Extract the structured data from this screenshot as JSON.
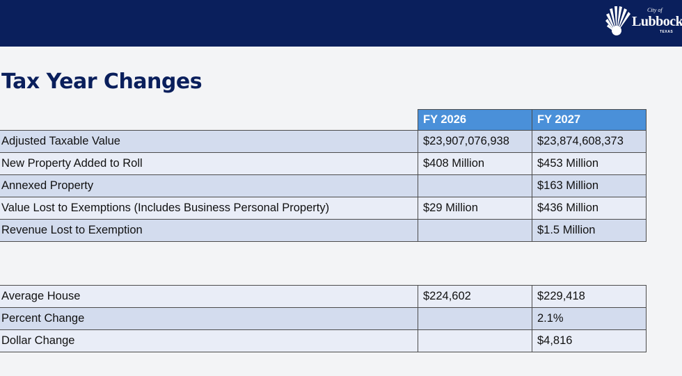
{
  "header": {
    "logo": {
      "city_of": "City of",
      "name": "Lubbock",
      "state": "TEXAS"
    }
  },
  "title": "Tax Year Changes",
  "table1": {
    "columns": [
      "FY 2026",
      "FY 2027"
    ],
    "rows": [
      {
        "label": "Adjusted Taxable Value",
        "fy2026": "$23,907,076,938",
        "fy2027": "$23,874,608,373"
      },
      {
        "label": "New Property Added to Roll",
        "fy2026": "$408 Million",
        "fy2027": "$453 Million"
      },
      {
        "label": "Annexed Property",
        "fy2026": "",
        "fy2027": "$163 Million"
      },
      {
        "label": "Value Lost to Exemptions (Includes Business Personal Property)",
        "fy2026": "$29 Million",
        "fy2027": "$436 Million"
      },
      {
        "label": "Revenue Lost to Exemption",
        "fy2026": "",
        "fy2027": "$1.5 Million"
      }
    ]
  },
  "table2": {
    "rows": [
      {
        "label": "Average House",
        "fy2026": "$224,602",
        "fy2027": "$229,418"
      },
      {
        "label": "Percent Change",
        "fy2026": "",
        "fy2027": "2.1%"
      },
      {
        "label": "Dollar Change",
        "fy2026": "",
        "fy2027": "$4,816"
      }
    ]
  },
  "colors": {
    "header_bar": "#0a1f5c",
    "column_header": "#4a90d9",
    "row_dark": "#d3dcee",
    "row_light": "#e9edf7",
    "title": "#0a1f5c"
  }
}
